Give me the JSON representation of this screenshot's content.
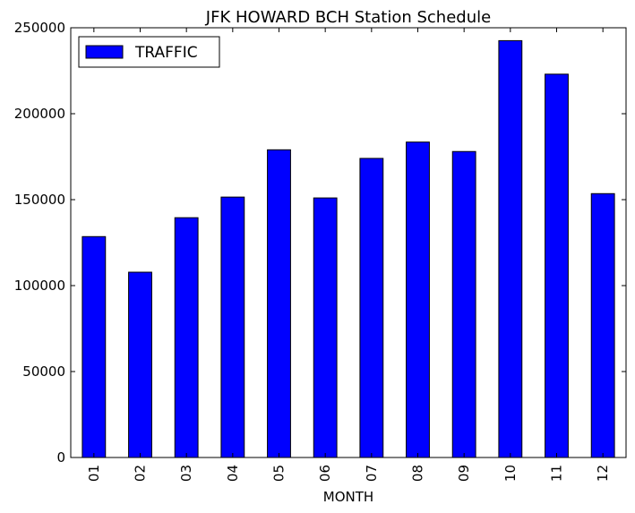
{
  "chart_data": {
    "type": "bar",
    "title": "JFK HOWARD BCH Station Schedule",
    "xlabel": "MONTH",
    "ylabel": "",
    "categories": [
      "01",
      "02",
      "03",
      "04",
      "05",
      "06",
      "07",
      "08",
      "09",
      "10",
      "11",
      "12"
    ],
    "series": [
      {
        "name": "TRAFFIC",
        "values": [
          128500,
          107800,
          139500,
          151500,
          179000,
          151000,
          174000,
          183500,
          178000,
          242500,
          223000,
          153500
        ],
        "color": "#0000ff"
      }
    ],
    "ylim": [
      0,
      250000
    ],
    "yticks": [
      "0",
      "50000",
      "100000",
      "150000",
      "200000",
      "250000"
    ],
    "legend_position": "top-left",
    "grid": false
  }
}
